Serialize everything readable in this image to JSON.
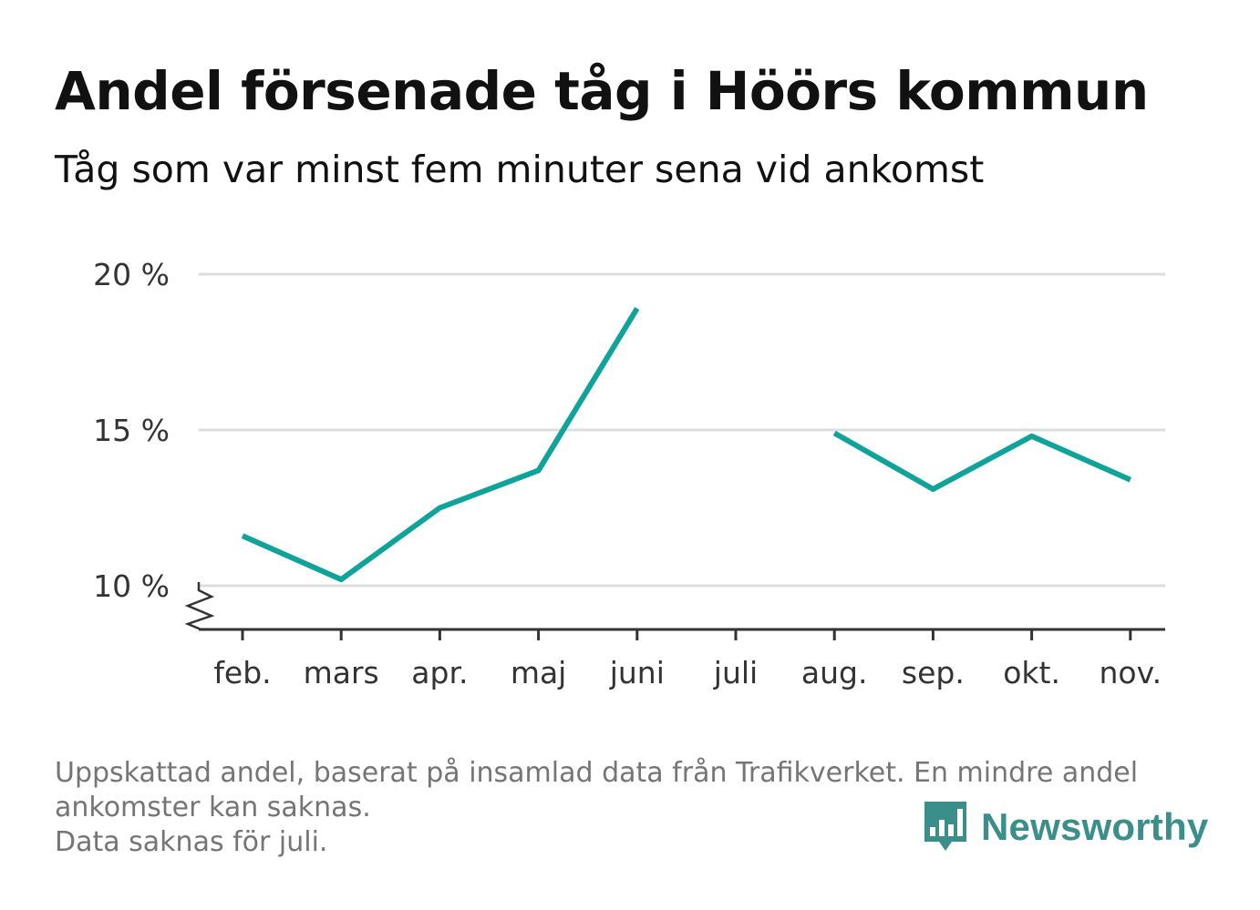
{
  "title": "Andel försenade tåg i Höörs kommun",
  "subtitle": "Tåg som var minst fem minuter sena vid ankomst",
  "footnote": {
    "line1": "Uppskattad andel, baserat på insamlad data från Trafikverket. En mindre andel",
    "line2": "ankomster kan saknas.",
    "line3": "Data saknas för juli."
  },
  "logo": {
    "text": "Newsworthy",
    "icon": "bar-chart-speech-bubble-icon"
  },
  "colors": {
    "line": "#0fa39a",
    "grid": "#dddddd",
    "axis": "#333333",
    "logo": "#3a8f8a"
  },
  "chart_data": {
    "type": "line",
    "categories": [
      "feb.",
      "mars",
      "apr.",
      "maj",
      "juni",
      "juli",
      "aug.",
      "sep.",
      "okt.",
      "nov."
    ],
    "series": [
      {
        "values": [
          11.6,
          10.2,
          12.5,
          13.7,
          18.9,
          null,
          14.9,
          13.1,
          14.8,
          13.4
        ]
      }
    ],
    "yticks": [
      {
        "value": 10,
        "label": "10 %"
      },
      {
        "value": 15,
        "label": "15 %"
      },
      {
        "value": 20,
        "label": "20 %"
      }
    ],
    "ylim": [
      8.6,
      20
    ],
    "axis_break": true,
    "grid": true,
    "xlabel": "",
    "ylabel": ""
  }
}
